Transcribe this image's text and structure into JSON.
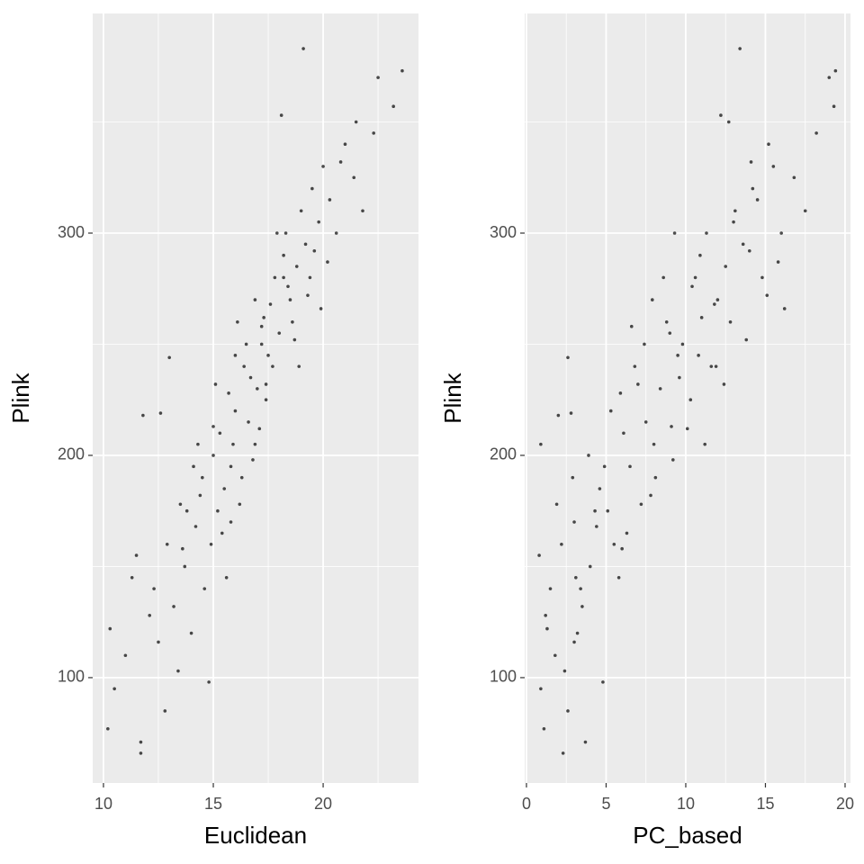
{
  "chart_data": [
    {
      "type": "scatter",
      "x_label": "Euclidean",
      "y_label": "Plink",
      "color": "#000000",
      "xlim": [
        9.51,
        24.34
      ],
      "ylim": [
        52.6,
        398.8
      ],
      "xticks": [
        10,
        15,
        20
      ],
      "yticks": [
        100,
        200,
        300
      ],
      "xminor": [
        12.5,
        17.5,
        22.5
      ],
      "yminor": [
        150,
        250,
        350
      ],
      "grid": true,
      "x": [
        10.2,
        10.5,
        11.7,
        11.7,
        10.3,
        11.0,
        11.5,
        11.8,
        12.3,
        12.8,
        12.5,
        12.9,
        13.2,
        13.5,
        12.6,
        13.0,
        13.7,
        14.0,
        14.2,
        14.5,
        14.8,
        14.9,
        15.0,
        15.2,
        15.5,
        15.3,
        15.6,
        15.1,
        15.8,
        16.0,
        16.2,
        15.9,
        16.4,
        16.6,
        16.1,
        16.8,
        17.0,
        17.2,
        16.9,
        17.4,
        17.5,
        17.3,
        17.8,
        18.0,
        17.7,
        18.2,
        18.5,
        18.3,
        18.8,
        19.0,
        18.6,
        19.2,
        19.5,
        19.8,
        19.4,
        20.0,
        20.3,
        20.6,
        21.0,
        21.4,
        21.8,
        22.3,
        22.5,
        23.2,
        23.6,
        19.1,
        18.1,
        14.3,
        13.8,
        14.6,
        15.4,
        16.3,
        16.7,
        17.1,
        17.6,
        18.4,
        18.9,
        19.6,
        20.2,
        13.4,
        12.1,
        11.3,
        14.1,
        15.7,
        16.5,
        17.9,
        18.7,
        20.8,
        19.9,
        21.5,
        16.0,
        15.0,
        14.4,
        13.6,
        17.4,
        18.2,
        15.8,
        16.9,
        17.2,
        19.3
      ],
      "y": [
        77,
        95,
        66,
        71,
        122,
        110,
        155,
        218,
        140,
        85,
        116,
        160,
        132,
        178,
        219,
        244,
        150,
        120,
        168,
        190,
        98,
        160,
        200,
        175,
        185,
        210,
        145,
        232,
        195,
        220,
        178,
        205,
        240,
        215,
        260,
        198,
        230,
        250,
        270,
        225,
        245,
        262,
        280,
        255,
        240,
        290,
        270,
        300,
        285,
        310,
        260,
        295,
        320,
        305,
        280,
        330,
        315,
        300,
        340,
        325,
        310,
        345,
        370,
        357,
        373,
        383,
        353,
        205,
        175,
        140,
        165,
        190,
        235,
        212,
        268,
        276,
        240,
        292,
        287,
        103,
        128,
        145,
        195,
        228,
        250,
        300,
        252,
        332,
        266,
        350,
        245,
        213,
        182,
        158,
        232,
        280,
        170,
        205,
        258,
        272
      ]
    },
    {
      "type": "scatter",
      "x_label": "PC_based",
      "y_label": "Plink",
      "color": "#000000",
      "xlim": [
        -0.11,
        20.34
      ],
      "ylim": [
        52.6,
        398.8
      ],
      "xticks": [
        0,
        5,
        10,
        15,
        20
      ],
      "yticks": [
        100,
        200,
        300
      ],
      "xminor": [
        2.5,
        7.5,
        12.5,
        17.5
      ],
      "yminor": [
        150,
        250,
        350
      ],
      "grid": true,
      "x": [
        1.1,
        0.9,
        2.3,
        3.7,
        1.3,
        1.8,
        0.8,
        2.0,
        1.5,
        2.6,
        3.0,
        2.2,
        3.5,
        1.9,
        2.8,
        2.6,
        4.0,
        3.2,
        4.4,
        2.9,
        4.8,
        5.5,
        3.9,
        5.1,
        4.6,
        6.1,
        5.8,
        7.0,
        6.5,
        5.3,
        7.2,
        8.0,
        6.8,
        7.5,
        8.8,
        9.2,
        8.4,
        9.8,
        7.9,
        10.3,
        9.5,
        11.0,
        10.6,
        9.0,
        11.6,
        10.9,
        12.0,
        11.3,
        12.5,
        13.1,
        12.8,
        13.6,
        14.2,
        13.0,
        14.8,
        15.5,
        14.5,
        16.0,
        15.2,
        16.8,
        17.5,
        18.2,
        19.0,
        19.3,
        19.4,
        13.4,
        12.2,
        0.9,
        4.3,
        3.4,
        6.3,
        8.1,
        9.6,
        10.1,
        11.8,
        10.4,
        11.9,
        14.0,
        15.8,
        2.4,
        1.2,
        3.1,
        4.9,
        5.9,
        7.4,
        9.3,
        13.8,
        14.1,
        16.2,
        12.7,
        10.8,
        9.1,
        7.8,
        6.0,
        12.4,
        8.6,
        3.0,
        11.2,
        6.6,
        15.1
      ],
      "y": [
        77,
        95,
        66,
        71,
        122,
        110,
        155,
        218,
        140,
        85,
        116,
        160,
        132,
        178,
        219,
        244,
        150,
        120,
        168,
        190,
        98,
        160,
        200,
        175,
        185,
        210,
        145,
        232,
        195,
        220,
        178,
        205,
        240,
        215,
        260,
        198,
        230,
        250,
        270,
        225,
        245,
        262,
        280,
        255,
        240,
        290,
        270,
        300,
        285,
        310,
        260,
        295,
        320,
        305,
        280,
        330,
        315,
        300,
        340,
        325,
        310,
        345,
        370,
        357,
        373,
        383,
        353,
        205,
        175,
        140,
        165,
        190,
        235,
        212,
        268,
        276,
        240,
        292,
        287,
        103,
        128,
        145,
        195,
        228,
        250,
        300,
        252,
        332,
        266,
        350,
        245,
        213,
        182,
        158,
        232,
        280,
        170,
        205,
        258,
        272
      ]
    }
  ]
}
